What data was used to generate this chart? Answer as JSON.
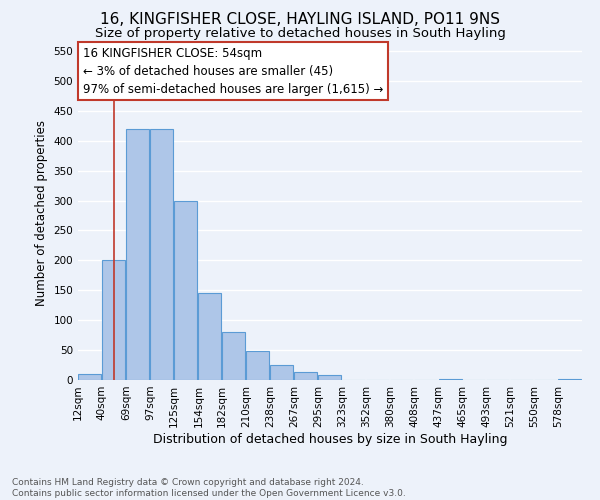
{
  "title": "16, KINGFISHER CLOSE, HAYLING ISLAND, PO11 9NS",
  "subtitle": "Size of property relative to detached houses in South Hayling",
  "xlabel": "Distribution of detached houses by size in South Hayling",
  "ylabel": "Number of detached properties",
  "bin_labels": [
    "12sqm",
    "40sqm",
    "69sqm",
    "97sqm",
    "125sqm",
    "154sqm",
    "182sqm",
    "210sqm",
    "238sqm",
    "267sqm",
    "295sqm",
    "323sqm",
    "352sqm",
    "380sqm",
    "408sqm",
    "437sqm",
    "465sqm",
    "493sqm",
    "521sqm",
    "550sqm",
    "578sqm"
  ],
  "bar_heights": [
    10,
    200,
    420,
    420,
    300,
    145,
    80,
    48,
    25,
    14,
    8,
    0,
    0,
    0,
    0,
    2,
    0,
    0,
    0,
    0,
    2
  ],
  "bar_color": "#aec6e8",
  "bar_edgecolor": "#5b9bd5",
  "bar_linewidth": 0.8,
  "vline_x_index": 1,
  "vline_color": "#c0392b",
  "annotation_box_text": "16 KINGFISHER CLOSE: 54sqm\n← 3% of detached houses are smaller (45)\n97% of semi-detached houses are larger (1,615) →",
  "annotation_box_facecolor": "white",
  "annotation_box_edgecolor": "#c0392b",
  "ylim": [
    0,
    560
  ],
  "yticks": [
    0,
    50,
    100,
    150,
    200,
    250,
    300,
    350,
    400,
    450,
    500,
    550
  ],
  "title_fontsize": 11,
  "subtitle_fontsize": 9.5,
  "xlabel_fontsize": 9,
  "ylabel_fontsize": 8.5,
  "tick_fontsize": 7.5,
  "annotation_fontsize": 8.5,
  "footer_text": "Contains HM Land Registry data © Crown copyright and database right 2024.\nContains public sector information licensed under the Open Government Licence v3.0.",
  "footer_fontsize": 6.5,
  "background_color": "#edf2fa",
  "plot_background_color": "#edf2fa",
  "grid_color": "white",
  "bin_width": 28
}
